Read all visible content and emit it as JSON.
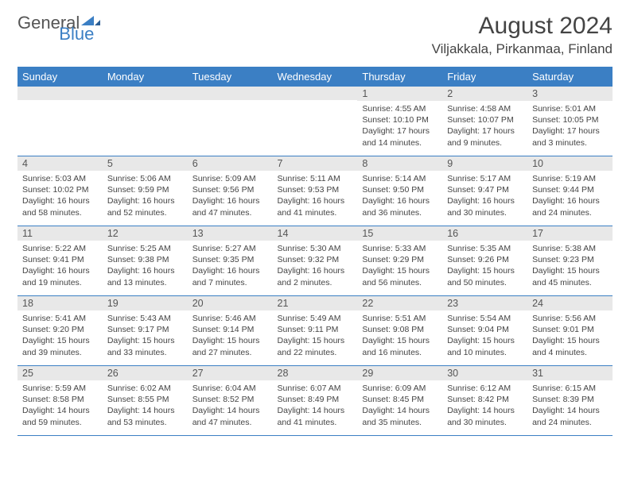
{
  "logo": {
    "text1": "General",
    "text2": "Blue"
  },
  "title": "August 2024",
  "location": "Viljakkala, Pirkanmaa, Finland",
  "colors": {
    "header_bg": "#3b7fc4",
    "header_text": "#ffffff",
    "daynum_bg": "#e8e8e8",
    "daynum_text": "#555555",
    "body_text": "#444444",
    "border": "#3b7fc4",
    "page_bg": "#ffffff"
  },
  "weekdays": [
    "Sunday",
    "Monday",
    "Tuesday",
    "Wednesday",
    "Thursday",
    "Friday",
    "Saturday"
  ],
  "grid": [
    [
      {
        "n": "",
        "sr": "",
        "ss": "",
        "dl": ""
      },
      {
        "n": "",
        "sr": "",
        "ss": "",
        "dl": ""
      },
      {
        "n": "",
        "sr": "",
        "ss": "",
        "dl": ""
      },
      {
        "n": "",
        "sr": "",
        "ss": "",
        "dl": ""
      },
      {
        "n": "1",
        "sr": "Sunrise: 4:55 AM",
        "ss": "Sunset: 10:10 PM",
        "dl": "Daylight: 17 hours and 14 minutes."
      },
      {
        "n": "2",
        "sr": "Sunrise: 4:58 AM",
        "ss": "Sunset: 10:07 PM",
        "dl": "Daylight: 17 hours and 9 minutes."
      },
      {
        "n": "3",
        "sr": "Sunrise: 5:01 AM",
        "ss": "Sunset: 10:05 PM",
        "dl": "Daylight: 17 hours and 3 minutes."
      }
    ],
    [
      {
        "n": "4",
        "sr": "Sunrise: 5:03 AM",
        "ss": "Sunset: 10:02 PM",
        "dl": "Daylight: 16 hours and 58 minutes."
      },
      {
        "n": "5",
        "sr": "Sunrise: 5:06 AM",
        "ss": "Sunset: 9:59 PM",
        "dl": "Daylight: 16 hours and 52 minutes."
      },
      {
        "n": "6",
        "sr": "Sunrise: 5:09 AM",
        "ss": "Sunset: 9:56 PM",
        "dl": "Daylight: 16 hours and 47 minutes."
      },
      {
        "n": "7",
        "sr": "Sunrise: 5:11 AM",
        "ss": "Sunset: 9:53 PM",
        "dl": "Daylight: 16 hours and 41 minutes."
      },
      {
        "n": "8",
        "sr": "Sunrise: 5:14 AM",
        "ss": "Sunset: 9:50 PM",
        "dl": "Daylight: 16 hours and 36 minutes."
      },
      {
        "n": "9",
        "sr": "Sunrise: 5:17 AM",
        "ss": "Sunset: 9:47 PM",
        "dl": "Daylight: 16 hours and 30 minutes."
      },
      {
        "n": "10",
        "sr": "Sunrise: 5:19 AM",
        "ss": "Sunset: 9:44 PM",
        "dl": "Daylight: 16 hours and 24 minutes."
      }
    ],
    [
      {
        "n": "11",
        "sr": "Sunrise: 5:22 AM",
        "ss": "Sunset: 9:41 PM",
        "dl": "Daylight: 16 hours and 19 minutes."
      },
      {
        "n": "12",
        "sr": "Sunrise: 5:25 AM",
        "ss": "Sunset: 9:38 PM",
        "dl": "Daylight: 16 hours and 13 minutes."
      },
      {
        "n": "13",
        "sr": "Sunrise: 5:27 AM",
        "ss": "Sunset: 9:35 PM",
        "dl": "Daylight: 16 hours and 7 minutes."
      },
      {
        "n": "14",
        "sr": "Sunrise: 5:30 AM",
        "ss": "Sunset: 9:32 PM",
        "dl": "Daylight: 16 hours and 2 minutes."
      },
      {
        "n": "15",
        "sr": "Sunrise: 5:33 AM",
        "ss": "Sunset: 9:29 PM",
        "dl": "Daylight: 15 hours and 56 minutes."
      },
      {
        "n": "16",
        "sr": "Sunrise: 5:35 AM",
        "ss": "Sunset: 9:26 PM",
        "dl": "Daylight: 15 hours and 50 minutes."
      },
      {
        "n": "17",
        "sr": "Sunrise: 5:38 AM",
        "ss": "Sunset: 9:23 PM",
        "dl": "Daylight: 15 hours and 45 minutes."
      }
    ],
    [
      {
        "n": "18",
        "sr": "Sunrise: 5:41 AM",
        "ss": "Sunset: 9:20 PM",
        "dl": "Daylight: 15 hours and 39 minutes."
      },
      {
        "n": "19",
        "sr": "Sunrise: 5:43 AM",
        "ss": "Sunset: 9:17 PM",
        "dl": "Daylight: 15 hours and 33 minutes."
      },
      {
        "n": "20",
        "sr": "Sunrise: 5:46 AM",
        "ss": "Sunset: 9:14 PM",
        "dl": "Daylight: 15 hours and 27 minutes."
      },
      {
        "n": "21",
        "sr": "Sunrise: 5:49 AM",
        "ss": "Sunset: 9:11 PM",
        "dl": "Daylight: 15 hours and 22 minutes."
      },
      {
        "n": "22",
        "sr": "Sunrise: 5:51 AM",
        "ss": "Sunset: 9:08 PM",
        "dl": "Daylight: 15 hours and 16 minutes."
      },
      {
        "n": "23",
        "sr": "Sunrise: 5:54 AM",
        "ss": "Sunset: 9:04 PM",
        "dl": "Daylight: 15 hours and 10 minutes."
      },
      {
        "n": "24",
        "sr": "Sunrise: 5:56 AM",
        "ss": "Sunset: 9:01 PM",
        "dl": "Daylight: 15 hours and 4 minutes."
      }
    ],
    [
      {
        "n": "25",
        "sr": "Sunrise: 5:59 AM",
        "ss": "Sunset: 8:58 PM",
        "dl": "Daylight: 14 hours and 59 minutes."
      },
      {
        "n": "26",
        "sr": "Sunrise: 6:02 AM",
        "ss": "Sunset: 8:55 PM",
        "dl": "Daylight: 14 hours and 53 minutes."
      },
      {
        "n": "27",
        "sr": "Sunrise: 6:04 AM",
        "ss": "Sunset: 8:52 PM",
        "dl": "Daylight: 14 hours and 47 minutes."
      },
      {
        "n": "28",
        "sr": "Sunrise: 6:07 AM",
        "ss": "Sunset: 8:49 PM",
        "dl": "Daylight: 14 hours and 41 minutes."
      },
      {
        "n": "29",
        "sr": "Sunrise: 6:09 AM",
        "ss": "Sunset: 8:45 PM",
        "dl": "Daylight: 14 hours and 35 minutes."
      },
      {
        "n": "30",
        "sr": "Sunrise: 6:12 AM",
        "ss": "Sunset: 8:42 PM",
        "dl": "Daylight: 14 hours and 30 minutes."
      },
      {
        "n": "31",
        "sr": "Sunrise: 6:15 AM",
        "ss": "Sunset: 8:39 PM",
        "dl": "Daylight: 14 hours and 24 minutes."
      }
    ]
  ]
}
